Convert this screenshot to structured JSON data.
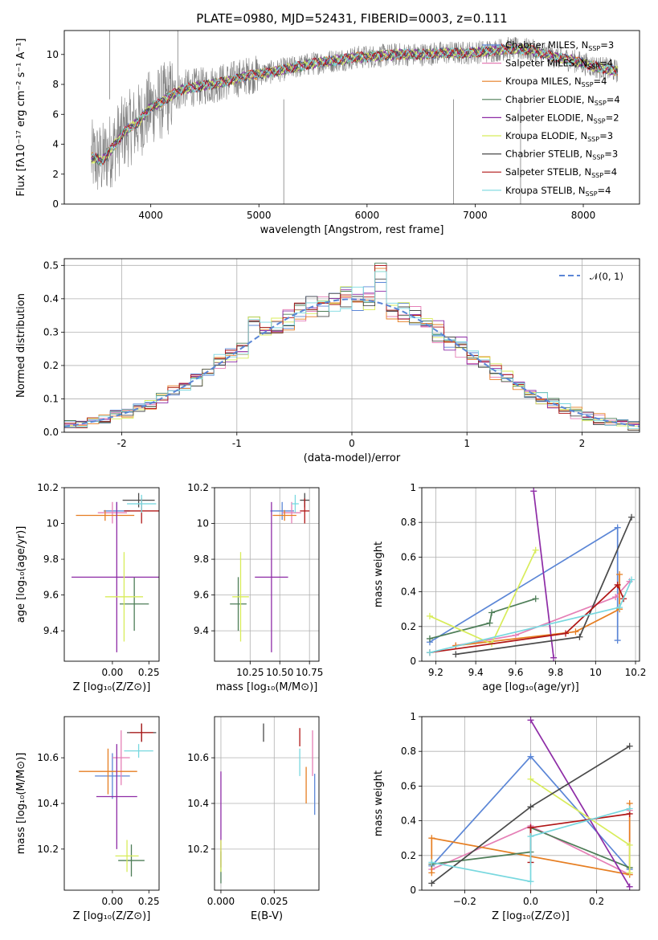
{
  "title": "PLATE=0980, MJD=52431, FIBERID=0003, z=0.111",
  "colors": {
    "chabrier_miles": "#5b86d6",
    "salpeter_miles": "#e57fb6",
    "kroupa_miles": "#e67e22",
    "chabrier_elodie": "#4d7d57",
    "salpeter_elodie": "#8e2ca6",
    "kroupa_elodie": "#d8ec5a",
    "chabrier_stelib": "#4a4a4a",
    "salpeter_stelib": "#b01616",
    "kroupa_stelib": "#78d8df",
    "data": "#808080"
  },
  "legend": [
    {
      "key": "chabrier_miles",
      "label": "Chabrier MILES, N",
      "sub": "SSP",
      "tail": "=3"
    },
    {
      "key": "salpeter_miles",
      "label": "Salpeter MILES, N",
      "sub": "SSP",
      "tail": "=4"
    },
    {
      "key": "kroupa_miles",
      "label": "Kroupa MILES, N",
      "sub": "SSP",
      "tail": "=4"
    },
    {
      "key": "chabrier_elodie",
      "label": "Chabrier ELODIE, N",
      "sub": "SSP",
      "tail": "=4"
    },
    {
      "key": "salpeter_elodie",
      "label": "Salpeter ELODIE, N",
      "sub": "SSP",
      "tail": "=2"
    },
    {
      "key": "kroupa_elodie",
      "label": "Kroupa ELODIE, N",
      "sub": "SSP",
      "tail": "=3"
    },
    {
      "key": "chabrier_stelib",
      "label": "Chabrier STELIB, N",
      "sub": "SSP",
      "tail": "=3"
    },
    {
      "key": "salpeter_stelib",
      "label": "Salpeter STELIB, N",
      "sub": "SSP",
      "tail": "=4"
    },
    {
      "key": "kroupa_stelib",
      "label": "Kroupa STELIB, N",
      "sub": "SSP",
      "tail": "=4"
    }
  ],
  "chart_data": [
    {
      "id": "spectrum",
      "type": "line",
      "xlabel": "wavelength [Angstrom, rest frame]",
      "ylabel": "Flux [fλ10⁻¹⁷ erg cm⁻² s⁻¹ A⁻¹]",
      "xlim": [
        3200,
        8520
      ],
      "ylim": [
        0,
        11.6
      ],
      "xticks": [
        4000,
        5000,
        6000,
        7000,
        8000
      ],
      "yticks": [
        0,
        2,
        4,
        6,
        8,
        10
      ],
      "data_range": [
        3450,
        8320
      ],
      "model_trend": {
        "x": [
          3450,
          3550,
          3650,
          3750,
          3900,
          4000,
          4100,
          4200,
          4300,
          4500,
          4700,
          4900,
          5100,
          5300,
          5500,
          5700,
          5900,
          6100,
          6300,
          6500,
          6700,
          6900,
          7100,
          7300,
          7500,
          7700,
          7900,
          8100,
          8300
        ],
        "y": [
          3.1,
          2.9,
          3.8,
          4.8,
          5.6,
          6.5,
          6.8,
          7.3,
          7.7,
          7.9,
          8.2,
          8.6,
          8.8,
          9.1,
          9.4,
          9.6,
          9.8,
          9.9,
          10.0,
          10.0,
          10.1,
          10.1,
          10.2,
          10.4,
          10.3,
          9.9,
          9.6,
          9.2,
          8.9
        ]
      },
      "data_spikes": [
        {
          "x": 3620,
          "y": 11.6
        },
        {
          "x": 4250,
          "y": 11.6
        },
        {
          "x": 5230,
          "y": 0
        },
        {
          "x": 6800,
          "y": 0
        },
        {
          "x": 7420,
          "y": 0
        }
      ]
    },
    {
      "id": "residual_hist",
      "type": "line",
      "xlabel": "(data-model)/error",
      "ylabel": "Normed distribution",
      "xlim": [
        -2.5,
        2.5
      ],
      "ylim": [
        0,
        0.52
      ],
      "xticks": [
        -2,
        -1,
        0,
        1,
        2
      ],
      "yticks": [
        0.0,
        0.1,
        0.2,
        0.3,
        0.4,
        0.5
      ],
      "legend_label": "𝒩(0, 1)",
      "gaussian": {
        "mean": 0,
        "sigma": 1,
        "color": "#5b86d6"
      }
    },
    {
      "id": "age_vs_Z",
      "type": "scatter",
      "xlabel": "Z [log₁₀(Z/Z⊙)]",
      "ylabel": "age  [log₁₀(age/yr)]",
      "xlim": [
        -0.33,
        0.32
      ],
      "ylim": [
        9.23,
        10.2
      ],
      "xticks": [
        0.0,
        0.25
      ],
      "xticklabels": [
        "0.00",
        "0.25"
      ],
      "yticks": [
        9.4,
        9.6,
        9.8,
        10.0,
        10.2
      ],
      "points": [
        {
          "key": "chabrier_miles",
          "x": 0.03,
          "xerr": 0.09,
          "y": 10.07,
          "yerr": 0.05
        },
        {
          "key": "salpeter_miles",
          "x": 0.0,
          "xerr": 0.1,
          "y": 10.06,
          "yerr": 0.06
        },
        {
          "key": "kroupa_miles",
          "x": -0.05,
          "xerr": 0.2,
          "y": 10.045,
          "yerr": 0.03
        },
        {
          "key": "chabrier_elodie",
          "x": 0.15,
          "xerr": 0.1,
          "y": 9.55,
          "yerr": 0.15
        },
        {
          "key": "salpeter_elodie",
          "x": 0.03,
          "xerr": 0.31,
          "y": 9.7,
          "yerr": 0.42
        },
        {
          "key": "kroupa_elodie",
          "x": 0.08,
          "xerr": 0.13,
          "y": 9.59,
          "yerr": 0.25
        },
        {
          "key": "chabrier_stelib",
          "x": 0.18,
          "xerr": 0.11,
          "y": 10.13,
          "yerr": 0.04
        },
        {
          "key": "salpeter_stelib",
          "x": 0.2,
          "xerr": 0.12,
          "y": 10.07,
          "yerr": 0.07
        },
        {
          "key": "kroupa_stelib",
          "x": 0.2,
          "xerr": 0.1,
          "y": 10.11,
          "yerr": 0.05
        }
      ]
    },
    {
      "id": "age_vs_mass",
      "type": "scatter",
      "xlabel": "mass [log₁₀(M/M⊙)]",
      "ylabel": "",
      "xlim": [
        9.95,
        10.83
      ],
      "ylim": [
        9.23,
        10.2
      ],
      "xticks": [
        10.25,
        10.5,
        10.75
      ],
      "xticklabels": [
        "10.25",
        "10.50",
        "10.75"
      ],
      "yticks": [
        9.4,
        9.6,
        9.8,
        10.0,
        10.2
      ],
      "points": [
        {
          "key": "chabrier_miles",
          "x": 10.52,
          "xerr": 0.1,
          "y": 10.07,
          "yerr": 0.05
        },
        {
          "key": "salpeter_miles",
          "x": 10.6,
          "xerr": 0.08,
          "y": 10.06,
          "yerr": 0.06
        },
        {
          "key": "kroupa_miles",
          "x": 10.54,
          "xerr": 0.1,
          "y": 10.045,
          "yerr": 0.03
        },
        {
          "key": "chabrier_elodie",
          "x": 10.15,
          "xerr": 0.07,
          "y": 9.55,
          "yerr": 0.15
        },
        {
          "key": "salpeter_elodie",
          "x": 10.43,
          "xerr": 0.14,
          "y": 9.7,
          "yerr": 0.42
        },
        {
          "key": "kroupa_elodie",
          "x": 10.17,
          "xerr": 0.07,
          "y": 9.59,
          "yerr": 0.25
        },
        {
          "key": "chabrier_stelib",
          "x": 10.71,
          "xerr": 0.04,
          "y": 10.13,
          "yerr": 0.04
        },
        {
          "key": "salpeter_stelib",
          "x": 10.71,
          "xerr": 0.04,
          "y": 10.07,
          "yerr": 0.07
        },
        {
          "key": "kroupa_stelib",
          "x": 10.63,
          "xerr": 0.03,
          "y": 10.11,
          "yerr": 0.05
        }
      ]
    },
    {
      "id": "weight_vs_age",
      "type": "line",
      "xlabel": "age  [log₁₀(age/yr)]",
      "ylabel": "mass weight",
      "xlim": [
        9.13,
        10.22
      ],
      "ylim": [
        0,
        1.0
      ],
      "xticks": [
        9.2,
        9.4,
        9.6,
        9.8,
        10.0,
        10.2
      ],
      "yticks": [
        0.0,
        0.2,
        0.4,
        0.6,
        0.8,
        1.0
      ],
      "series": [
        {
          "key": "chabrier_miles",
          "x": [
            9.17,
            10.11,
            10.11
          ],
          "y": [
            0.11,
            0.77,
            0.12
          ]
        },
        {
          "key": "salpeter_miles",
          "x": [
            9.3,
            9.6,
            10.1,
            10.17
          ],
          "y": [
            0.09,
            0.15,
            0.37,
            0.46
          ]
        },
        {
          "key": "kroupa_miles",
          "x": [
            9.3,
            9.9,
            10.12,
            10.12
          ],
          "y": [
            0.09,
            0.17,
            0.3,
            0.5
          ]
        },
        {
          "key": "chabrier_elodie",
          "x": [
            9.17,
            9.47,
            9.48,
            9.7
          ],
          "y": [
            0.13,
            0.22,
            0.28,
            0.36
          ]
        },
        {
          "key": "salpeter_elodie",
          "x": [
            9.69,
            9.79
          ],
          "y": [
            0.98,
            0.02
          ]
        },
        {
          "key": "kroupa_elodie",
          "x": [
            9.17,
            9.48,
            9.7
          ],
          "y": [
            0.26,
            0.1,
            0.64
          ]
        },
        {
          "key": "chabrier_stelib",
          "x": [
            9.3,
            9.92,
            10.18
          ],
          "y": [
            0.04,
            0.14,
            0.83
          ]
        },
        {
          "key": "salpeter_stelib",
          "x": [
            9.17,
            9.85,
            10.11,
            10.14
          ],
          "y": [
            0.05,
            0.16,
            0.44,
            0.36
          ]
        },
        {
          "key": "kroupa_stelib",
          "x": [
            9.17,
            10.12,
            10.18
          ],
          "y": [
            0.05,
            0.31,
            0.47
          ]
        }
      ]
    },
    {
      "id": "mass_vs_Z",
      "type": "scatter",
      "xlabel": "Z [log₁₀(Z/Z⊙)]",
      "ylabel": "mass [log₁₀(M/M⊙)]",
      "xlim": [
        -0.33,
        0.32
      ],
      "ylim": [
        10.02,
        10.78
      ],
      "xticks": [
        0.0,
        0.25
      ],
      "xticklabels": [
        "0.00",
        "0.25"
      ],
      "yticks": [
        10.2,
        10.4,
        10.6
      ],
      "points": [
        {
          "key": "chabrier_miles",
          "x": 0.0,
          "xerr": 0.12,
          "y": 10.52,
          "yerr": 0.1
        },
        {
          "key": "salpeter_miles",
          "x": 0.06,
          "xerr": 0.06,
          "y": 10.6,
          "yerr": 0.12
        },
        {
          "key": "kroupa_miles",
          "x": -0.03,
          "xerr": 0.2,
          "y": 10.54,
          "yerr": 0.1
        },
        {
          "key": "chabrier_elodie",
          "x": 0.13,
          "xerr": 0.09,
          "y": 10.15,
          "yerr": 0.07
        },
        {
          "key": "salpeter_elodie",
          "x": 0.03,
          "xerr": 0.14,
          "y": 10.43,
          "yerr": 0.23
        },
        {
          "key": "kroupa_elodie",
          "x": 0.1,
          "xerr": 0.08,
          "y": 10.17,
          "yerr": 0.07
        },
        {
          "key": "chabrier_stelib",
          "x": 0.2,
          "xerr": 0.1,
          "y": 10.71,
          "yerr": 0.04
        },
        {
          "key": "salpeter_stelib",
          "x": 0.2,
          "xerr": 0.08,
          "y": 10.71,
          "yerr": 0.04
        },
        {
          "key": "kroupa_stelib",
          "x": 0.18,
          "xerr": 0.1,
          "y": 10.63,
          "yerr": 0.03
        }
      ]
    },
    {
      "id": "mass_vs_ebv",
      "type": "scatter",
      "xlabel": "E(B-V)",
      "ylabel": "",
      "xlim": [
        -0.003,
        0.046
      ],
      "ylim": [
        10.02,
        10.78
      ],
      "xticks": [
        0.0,
        0.025
      ],
      "xticklabels": [
        "0.000",
        "0.025"
      ],
      "yticks": [
        10.2,
        10.4,
        10.6
      ],
      "points": [
        {
          "key": "chabrier_miles",
          "x": 0.044,
          "yerr": 0.09,
          "y": 10.44
        },
        {
          "key": "salpeter_miles",
          "x": 0.043,
          "yerr": 0.1,
          "y": 10.62
        },
        {
          "key": "kroupa_miles",
          "x": 0.04,
          "yerr": 0.08,
          "y": 10.48
        },
        {
          "key": "chabrier_elodie",
          "x": 0.0,
          "yerr": 0.07,
          "y": 10.12
        },
        {
          "key": "salpeter_elodie",
          "x": 0.0,
          "yerr": 0.21,
          "y": 10.33
        },
        {
          "key": "kroupa_elodie",
          "x": 0.0,
          "yerr": 0.07,
          "y": 10.17
        },
        {
          "key": "chabrier_stelib",
          "x": 0.02,
          "yerr": 0.04,
          "y": 10.71
        },
        {
          "key": "salpeter_stelib",
          "x": 0.037,
          "yerr": 0.04,
          "y": 10.69
        },
        {
          "key": "kroupa_stelib",
          "x": 0.037,
          "yerr": 0.06,
          "y": 10.58
        }
      ]
    },
    {
      "id": "weight_vs_Z",
      "type": "line",
      "xlabel": "Z [log₁₀(Z/Z⊙)]",
      "ylabel": "mass weight",
      "xlim": [
        -0.33,
        0.33
      ],
      "ylim": [
        0,
        1.0
      ],
      "xticks": [
        -0.2,
        0.0,
        0.2
      ],
      "xticklabels": [
        "−0.2",
        "0.0",
        "0.2"
      ],
      "yticks": [
        0.0,
        0.2,
        0.4,
        0.6,
        0.8,
        1.0
      ],
      "series": [
        {
          "key": "chabrier_miles",
          "x": [
            -0.3,
            0.0,
            0.3
          ],
          "y": [
            0.14,
            0.77,
            0.12
          ]
        },
        {
          "key": "salpeter_miles",
          "x": [
            -0.3,
            0.0,
            0.3,
            0.3
          ],
          "y": [
            0.12,
            0.37,
            0.09,
            0.46
          ]
        },
        {
          "key": "kroupa_miles",
          "x": [
            -0.3,
            -0.3,
            0.3,
            0.3
          ],
          "y": [
            0.1,
            0.3,
            0.09,
            0.5
          ]
        },
        {
          "key": "chabrier_elodie",
          "x": [
            -0.3,
            0.0,
            0.0,
            0.3
          ],
          "y": [
            0.15,
            0.22,
            0.36,
            0.13
          ]
        },
        {
          "key": "salpeter_elodie",
          "x": [
            0.0,
            0.3
          ],
          "y": [
            0.98,
            0.02
          ]
        },
        {
          "key": "kroupa_elodie",
          "x": [
            0.0,
            0.3,
            0.3
          ],
          "y": [
            0.64,
            0.26,
            0.1
          ]
        },
        {
          "key": "chabrier_stelib",
          "x": [
            -0.3,
            0.0,
            0.3
          ],
          "y": [
            0.04,
            0.48,
            0.83
          ]
        },
        {
          "key": "salpeter_stelib",
          "x": [
            0.0,
            0.0,
            0.3
          ],
          "y": [
            0.16,
            0.36,
            0.44
          ]
        },
        {
          "key": "kroupa_stelib",
          "x": [
            -0.3,
            0.0,
            0.0,
            0.3
          ],
          "y": [
            0.16,
            0.05,
            0.31,
            0.47
          ]
        }
      ]
    }
  ]
}
